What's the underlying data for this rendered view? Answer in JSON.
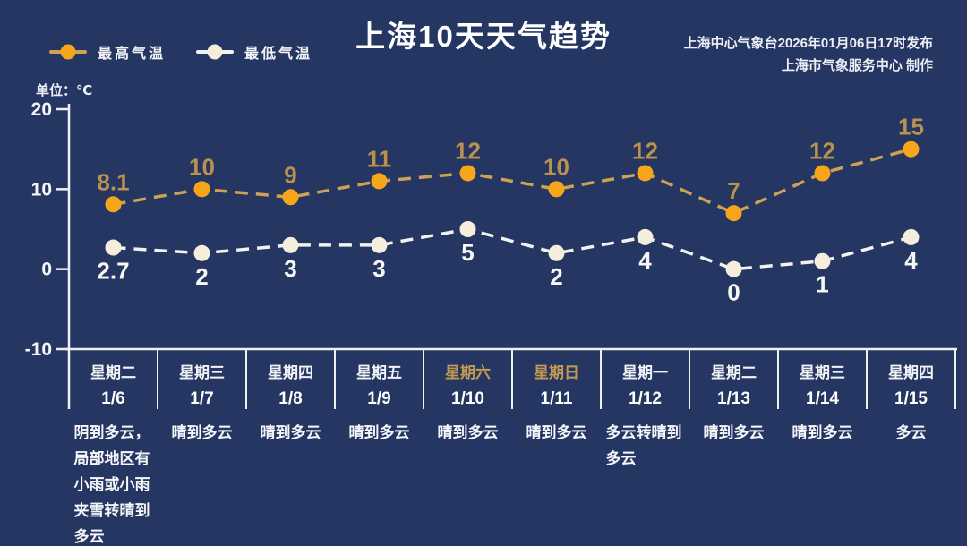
{
  "header": {
    "title": "上海10天天气趋势",
    "source_line1": "上海中心气象台2026年01月06日17时发布",
    "source_line2": "上海市气象服务中心  制作",
    "unit_label": "单位：℃"
  },
  "legend": [
    {
      "label": "最高气温",
      "marker_color": "#f7a61b",
      "line_color": "#cfa155"
    },
    {
      "label": "最低气温",
      "marker_color": "#f6eedd",
      "line_color": "#f2f2f2"
    }
  ],
  "chart_data": {
    "type": "line",
    "title": "上海10天天气趋势",
    "x_categories": [
      "1/6",
      "1/7",
      "1/8",
      "1/9",
      "1/10",
      "1/11",
      "1/12",
      "1/13",
      "1/14",
      "1/15"
    ],
    "series": [
      {
        "name": "最高气温",
        "values": [
          8.1,
          10,
          9,
          11,
          12,
          10,
          12,
          7,
          12,
          15
        ]
      },
      {
        "name": "最低气温",
        "values": [
          2.7,
          2,
          3,
          3,
          5,
          2,
          4,
          0,
          1,
          4
        ]
      }
    ],
    "ylabel": "单位：℃",
    "ylim": [
      -10,
      20
    ],
    "yticks": [
      20,
      10,
      0,
      -10
    ],
    "grid": false,
    "line_style": "dashed",
    "legend_position": "top-left"
  },
  "days": [
    {
      "weekday": "星期二",
      "date": "1/6",
      "weather": "阴到多云，局部地区有小雨或小雨夹雪转晴到多云",
      "weekend": false
    },
    {
      "weekday": "星期三",
      "date": "1/7",
      "weather": "晴到多云",
      "weekend": false
    },
    {
      "weekday": "星期四",
      "date": "1/8",
      "weather": "晴到多云",
      "weekend": false
    },
    {
      "weekday": "星期五",
      "date": "1/9",
      "weather": "晴到多云",
      "weekend": false
    },
    {
      "weekday": "星期六",
      "date": "1/10",
      "weather": "晴到多云",
      "weekend": true
    },
    {
      "weekday": "星期日",
      "date": "1/11",
      "weather": "晴到多云",
      "weekend": true
    },
    {
      "weekday": "星期一",
      "date": "1/12",
      "weather": "多云转晴到多云",
      "weekend": false
    },
    {
      "weekday": "星期二",
      "date": "1/13",
      "weather": "晴到多云",
      "weekend": false
    },
    {
      "weekday": "星期三",
      "date": "1/14",
      "weather": "晴到多云",
      "weekend": false
    },
    {
      "weekday": "星期四",
      "date": "1/15",
      "weather": "多云",
      "weekend": false
    }
  ],
  "colors": {
    "background": "#253663",
    "text": "#f5f6fa",
    "axis": "#eef0f4",
    "high_line": "#cfa155",
    "high_marker": "#f7a61b",
    "high_label": "#b8924e",
    "low_line": "#f2f2f2",
    "low_marker": "#f6eedd",
    "low_label": "#f7f7f7",
    "weekend_label": "#c39a52"
  }
}
